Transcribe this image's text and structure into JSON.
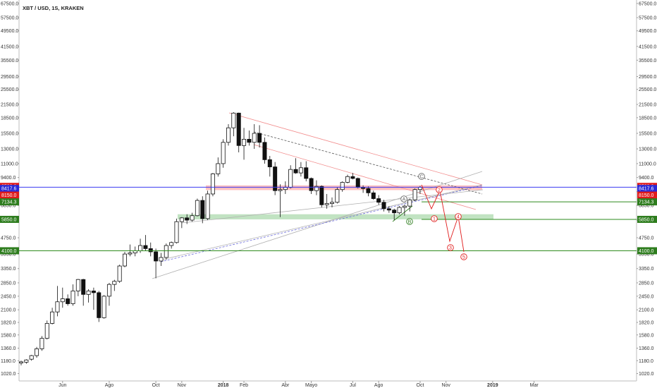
{
  "chart_data": {
    "type": "candlestick",
    "title": "XBT / USD, 1S, KRAKEN",
    "scale": "log",
    "ylim": [
      1000,
      68000
    ],
    "y_ticks": [
      "67500.0",
      "57500.0",
      "49500.0",
      "41500.0",
      "35500.0",
      "29500.0",
      "25500.0",
      "21500.0",
      "18500.0",
      "15500.0",
      "13000.0",
      "11000.0",
      "9400.0",
      "8000.0",
      "6850.0",
      "5800.0",
      "4750.0",
      "3950.0",
      "3350.0",
      "2850.0",
      "2450.0",
      "2100.0",
      "1820.0",
      "1580.0",
      "1360.0",
      "1180.0",
      "1020.0"
    ],
    "x_labels": [
      {
        "label": "Jun",
        "index": 8
      },
      {
        "label": "Ago",
        "index": 17
      },
      {
        "label": "Oct",
        "index": 26
      },
      {
        "label": "Nov",
        "index": 31
      },
      {
        "label": "2018",
        "index": 39
      },
      {
        "label": "Feb",
        "index": 43
      },
      {
        "label": "Abr",
        "index": 51
      },
      {
        "label": "Mayo",
        "index": 56
      },
      {
        "label": "Jul",
        "index": 64
      },
      {
        "label": "Ago",
        "index": 69
      },
      {
        "label": "Oct",
        "index": 77
      },
      {
        "label": "Nov",
        "index": 82
      },
      {
        "label": "2019",
        "index": 91
      },
      {
        "label": "Mar",
        "index": 99
      }
    ],
    "candles": [
      {
        "o": 1150,
        "h": 1180,
        "l": 1120,
        "c": 1165
      },
      {
        "o": 1160,
        "h": 1200,
        "l": 1140,
        "c": 1190
      },
      {
        "o": 1200,
        "h": 1260,
        "l": 1180,
        "c": 1250
      },
      {
        "o": 1250,
        "h": 1380,
        "l": 1220,
        "c": 1350
      },
      {
        "o": 1350,
        "h": 1560,
        "l": 1320,
        "c": 1520
      },
      {
        "o": 1520,
        "h": 1860,
        "l": 1500,
        "c": 1800
      },
      {
        "o": 1800,
        "h": 2150,
        "l": 1780,
        "c": 2050
      },
      {
        "o": 2050,
        "h": 2750,
        "l": 1950,
        "c": 2300
      },
      {
        "o": 2300,
        "h": 2700,
        "l": 2150,
        "c": 2380
      },
      {
        "o": 2380,
        "h": 2500,
        "l": 2200,
        "c": 2250
      },
      {
        "o": 2250,
        "h": 2800,
        "l": 2200,
        "c": 2600
      },
      {
        "o": 2600,
        "h": 2980,
        "l": 2450,
        "c": 2960
      },
      {
        "o": 2960,
        "h": 2980,
        "l": 2200,
        "c": 2500
      },
      {
        "o": 2500,
        "h": 2650,
        "l": 2280,
        "c": 2600
      },
      {
        "o": 2600,
        "h": 2700,
        "l": 2100,
        "c": 2550
      },
      {
        "o": 2550,
        "h": 2600,
        "l": 1830,
        "c": 1920
      },
      {
        "o": 1920,
        "h": 2480,
        "l": 1900,
        "c": 2450
      },
      {
        "o": 2450,
        "h": 2850,
        "l": 2200,
        "c": 2800
      },
      {
        "o": 2800,
        "h": 2950,
        "l": 2600,
        "c": 2900
      },
      {
        "o": 2900,
        "h": 3500,
        "l": 2850,
        "c": 3450
      },
      {
        "o": 3450,
        "h": 4050,
        "l": 3400,
        "c": 3950
      },
      {
        "o": 3950,
        "h": 4400,
        "l": 3850,
        "c": 4000
      },
      {
        "o": 4000,
        "h": 4300,
        "l": 3850,
        "c": 4100
      },
      {
        "o": 4100,
        "h": 4700,
        "l": 4000,
        "c": 4350
      },
      {
        "o": 4350,
        "h": 4900,
        "l": 4100,
        "c": 4200
      },
      {
        "o": 4200,
        "h": 4500,
        "l": 3850,
        "c": 4050
      },
      {
        "o": 4050,
        "h": 4200,
        "l": 3000,
        "c": 3650
      },
      {
        "o": 3650,
        "h": 4000,
        "l": 3450,
        "c": 3800
      },
      {
        "o": 3800,
        "h": 4450,
        "l": 3700,
        "c": 4350
      },
      {
        "o": 4350,
        "h": 4550,
        "l": 4200,
        "c": 4500
      },
      {
        "o": 4500,
        "h": 5900,
        "l": 4450,
        "c": 5700
      },
      {
        "o": 5700,
        "h": 6000,
        "l": 5300,
        "c": 5950
      },
      {
        "o": 5950,
        "h": 6200,
        "l": 5550,
        "c": 5800
      },
      {
        "o": 5800,
        "h": 6300,
        "l": 5700,
        "c": 6100
      },
      {
        "o": 6100,
        "h": 7400,
        "l": 6050,
        "c": 7250
      },
      {
        "o": 7250,
        "h": 7600,
        "l": 5600,
        "c": 5900
      },
      {
        "o": 5900,
        "h": 8100,
        "l": 5800,
        "c": 7800
      },
      {
        "o": 7800,
        "h": 9900,
        "l": 7600,
        "c": 9800
      },
      {
        "o": 9800,
        "h": 11800,
        "l": 9500,
        "c": 11000
      },
      {
        "o": 11000,
        "h": 14500,
        "l": 10500,
        "c": 14000
      },
      {
        "o": 14000,
        "h": 17200,
        "l": 13500,
        "c": 16500
      },
      {
        "o": 16500,
        "h": 19700,
        "l": 15000,
        "c": 19500
      },
      {
        "o": 19500,
        "h": 19600,
        "l": 12500,
        "c": 13500
      },
      {
        "o": 13500,
        "h": 16500,
        "l": 11500,
        "c": 14500
      },
      {
        "o": 14500,
        "h": 16000,
        "l": 13500,
        "c": 14000
      },
      {
        "o": 14000,
        "h": 17200,
        "l": 13000,
        "c": 15500
      },
      {
        "o": 15500,
        "h": 17000,
        "l": 13200,
        "c": 14000
      },
      {
        "o": 14000,
        "h": 14800,
        "l": 11000,
        "c": 11500
      },
      {
        "o": 11500,
        "h": 12000,
        "l": 9500,
        "c": 10600
      },
      {
        "o": 10600,
        "h": 11200,
        "l": 7700,
        "c": 8100
      },
      {
        "o": 8100,
        "h": 8700,
        "l": 6000,
        "c": 8200
      },
      {
        "o": 8200,
        "h": 9000,
        "l": 7800,
        "c": 8400
      },
      {
        "o": 8400,
        "h": 10800,
        "l": 8300,
        "c": 10300
      },
      {
        "o": 10300,
        "h": 11700,
        "l": 9800,
        "c": 9900
      },
      {
        "o": 9900,
        "h": 11200,
        "l": 9500,
        "c": 10500
      },
      {
        "o": 10500,
        "h": 11300,
        "l": 9000,
        "c": 9300
      },
      {
        "o": 9300,
        "h": 9400,
        "l": 7800,
        "c": 8100
      },
      {
        "o": 8100,
        "h": 9100,
        "l": 7700,
        "c": 8500
      },
      {
        "o": 8500,
        "h": 8600,
        "l": 6700,
        "c": 6900
      },
      {
        "o": 6900,
        "h": 7800,
        "l": 6600,
        "c": 7000
      },
      {
        "o": 7000,
        "h": 7500,
        "l": 6700,
        "c": 7100
      },
      {
        "o": 7100,
        "h": 8400,
        "l": 7000,
        "c": 8200
      },
      {
        "o": 8200,
        "h": 9000,
        "l": 8000,
        "c": 8900
      },
      {
        "o": 8900,
        "h": 9700,
        "l": 8800,
        "c": 9500
      },
      {
        "o": 9500,
        "h": 9900,
        "l": 9200,
        "c": 9300
      },
      {
        "o": 9300,
        "h": 9400,
        "l": 8300,
        "c": 8400
      },
      {
        "o": 8400,
        "h": 8600,
        "l": 7900,
        "c": 8300
      },
      {
        "o": 8300,
        "h": 8500,
        "l": 7600,
        "c": 7900
      },
      {
        "o": 7900,
        "h": 8100,
        "l": 7300,
        "c": 7400
      },
      {
        "o": 7400,
        "h": 7700,
        "l": 6900,
        "c": 7100
      },
      {
        "o": 7100,
        "h": 7300,
        "l": 6400,
        "c": 6600
      },
      {
        "o": 6600,
        "h": 6800,
        "l": 6300,
        "c": 6500
      },
      {
        "o": 6500,
        "h": 6600,
        "l": 5800,
        "c": 6300
      },
      {
        "o": 6300,
        "h": 6800,
        "l": 6200,
        "c": 6700
      },
      {
        "o": 6700,
        "h": 6900,
        "l": 6100,
        "c": 6800
      },
      {
        "o": 6800,
        "h": 7400,
        "l": 6400,
        "c": 7300
      },
      {
        "o": 7300,
        "h": 8300,
        "l": 7200,
        "c": 8200
      },
      {
        "o": 8200,
        "h": 8550,
        "l": 7800,
        "c": 8420
      }
    ],
    "price_tags": [
      {
        "label": "8500.0",
        "value": 8500,
        "color": "#e01b1b"
      },
      {
        "label": "8417.6",
        "value": 8300,
        "color": "#2929d6"
      },
      {
        "label": "8150.0",
        "value": 7700,
        "color": "#e01b1b"
      },
      {
        "label": "7134.3",
        "value": 7134,
        "color": "#2e7d1e"
      },
      {
        "label": "5850.0",
        "value": 5850,
        "color": "#2e7d1e"
      },
      {
        "label": "4100.0",
        "value": 4100,
        "color": "#2e7d1e"
      }
    ],
    "horizontal_lines": [
      {
        "value": 8417.6,
        "color": "#3a3af0"
      },
      {
        "value": 7134.3,
        "color": "#2e8b1e"
      },
      {
        "value": 5850,
        "color": "#2e8b1e"
      },
      {
        "value": 4100,
        "color": "#2e8b1e"
      }
    ],
    "zones": [
      {
        "from": 8150,
        "to": 8600,
        "color": "#ff4d4d"
      },
      {
        "from": 5850,
        "to": 6200,
        "color": "#4caf50"
      }
    ],
    "wave_labels": [
      {
        "label": "A",
        "color": "#666666"
      },
      {
        "label": "B",
        "color": "#2e7d1e"
      },
      {
        "label": "C",
        "color": "#666666"
      },
      {
        "label": "1",
        "color": "#e01b1b"
      },
      {
        "label": "2",
        "color": "#e01b1b"
      },
      {
        "label": "3",
        "color": "#e01b1b"
      },
      {
        "label": "4",
        "color": "#e01b1b"
      },
      {
        "label": "5",
        "color": "#e01b1b"
      }
    ]
  }
}
